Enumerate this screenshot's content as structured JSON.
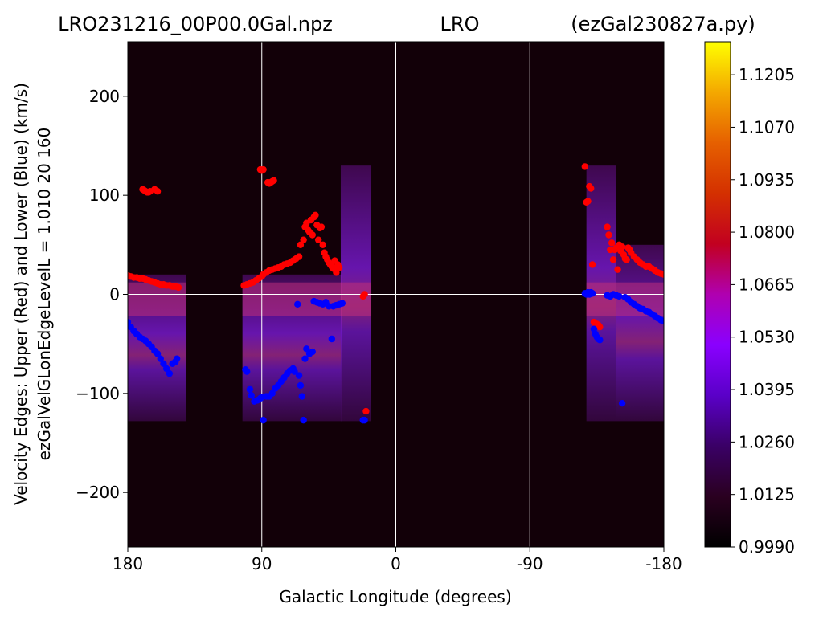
{
  "figure": {
    "title_left": "LRO231216_00P00.0Gal.npz",
    "title_center": "LRO",
    "title_right": "(ezGal230827a.py)"
  },
  "chart_data": {
    "type": "heatmap",
    "xlabel": "Galactic Longitude (degrees)",
    "ylabel_line1": "Velocity Edges: Upper (Red) and Lower (Blue) (km/s)",
    "ylabel_line2": "ezGalVelGLonEdgeLevelL = 1.010  20  160",
    "xlim": [
      180,
      -180
    ],
    "ylim": [
      -255,
      255
    ],
    "x_ticks": [
      180,
      90,
      0,
      -90,
      -180
    ],
    "y_ticks": [
      200,
      100,
      0,
      -100,
      -200
    ],
    "y_tick_labels": [
      "200",
      "100",
      "0",
      "−100",
      "−200"
    ],
    "grid": true,
    "colorbar": {
      "colormap": "gnuplot",
      "range": [
        0.999,
        1.129
      ],
      "ticks": [
        0.999,
        1.0125,
        1.026,
        1.0395,
        1.053,
        1.0665,
        1.08,
        1.0935,
        1.107,
        1.1205
      ],
      "tick_labels": [
        "0.9990",
        "1.0125",
        "1.0260",
        "1.0395",
        "1.0530",
        "1.0665",
        "1.0800",
        "1.0935",
        "1.1070",
        "1.1205"
      ]
    },
    "data_regions": [
      {
        "x_from": 180,
        "x_to": 141,
        "v_from": -128,
        "v_to": 20
      },
      {
        "x_from": 103,
        "x_to": 36,
        "v_from": -128,
        "v_to": 20
      },
      {
        "x_from": 37,
        "x_to": 17,
        "v_from": -128,
        "v_to": 130
      },
      {
        "x_from": -128,
        "x_to": -148,
        "v_from": -128,
        "v_to": 130
      },
      {
        "x_from": -148,
        "x_to": -180,
        "v_from": -128,
        "v_to": 50
      }
    ],
    "series": [
      {
        "name": "Upper (Red)",
        "color": "#ff0000",
        "points": [
          [
            180,
            19
          ],
          [
            178,
            18
          ],
          [
            176,
            17
          ],
          [
            174,
            17
          ],
          [
            172,
            16
          ],
          [
            170,
            16
          ],
          [
            168,
            15
          ],
          [
            166,
            14
          ],
          [
            164,
            13
          ],
          [
            162,
            12
          ],
          [
            160,
            11
          ],
          [
            158,
            10
          ],
          [
            156,
            10
          ],
          [
            154,
            9
          ],
          [
            152,
            9
          ],
          [
            150,
            8
          ],
          [
            148,
            8
          ],
          [
            146,
            7
          ],
          [
            170,
            106
          ],
          [
            169,
            105
          ],
          [
            168,
            104
          ],
          [
            167,
            103
          ],
          [
            166,
            103
          ],
          [
            165,
            104
          ],
          [
            162,
            106
          ],
          [
            160,
            104
          ],
          [
            102,
            9
          ],
          [
            100,
            10
          ],
          [
            98,
            11
          ],
          [
            96,
            12
          ],
          [
            94,
            14
          ],
          [
            92,
            16
          ],
          [
            90,
            18
          ],
          [
            89,
            20
          ],
          [
            87,
            22
          ],
          [
            85,
            24
          ],
          [
            83,
            25
          ],
          [
            81,
            26
          ],
          [
            79,
            27
          ],
          [
            77,
            28
          ],
          [
            75,
            30
          ],
          [
            73,
            31
          ],
          [
            71,
            32
          ],
          [
            69,
            34
          ],
          [
            67,
            36
          ],
          [
            65,
            38
          ],
          [
            91,
            126
          ],
          [
            90,
            125
          ],
          [
            89,
            126
          ],
          [
            86,
            113
          ],
          [
            85,
            112
          ],
          [
            84,
            113
          ],
          [
            83,
            114
          ],
          [
            82,
            115
          ],
          [
            64,
            50
          ],
          [
            62,
            55
          ],
          [
            61,
            68
          ],
          [
            60,
            72
          ],
          [
            59,
            65
          ],
          [
            58,
            63
          ],
          [
            57,
            75
          ],
          [
            56,
            60
          ],
          [
            55,
            78
          ],
          [
            54,
            80
          ],
          [
            53,
            70
          ],
          [
            52,
            55
          ],
          [
            51,
            67
          ],
          [
            50,
            68
          ],
          [
            49,
            50
          ],
          [
            48,
            42
          ],
          [
            47,
            38
          ],
          [
            46,
            35
          ],
          [
            45,
            32
          ],
          [
            44,
            30
          ],
          [
            43,
            28
          ],
          [
            42,
            26
          ],
          [
            41,
            34
          ],
          [
            40,
            22
          ],
          [
            39,
            30
          ],
          [
            38,
            27
          ],
          [
            22,
            -2
          ],
          [
            21,
            0
          ],
          [
            20,
            -118
          ],
          [
            -127,
            129
          ],
          [
            -128,
            93
          ],
          [
            -129,
            94
          ],
          [
            -130,
            109
          ],
          [
            -131,
            107
          ],
          [
            -132,
            30
          ],
          [
            -133,
            -28
          ],
          [
            -134,
            -30
          ],
          [
            -135,
            -30
          ],
          [
            -136,
            -31
          ],
          [
            -137,
            -33
          ],
          [
            -142,
            68
          ],
          [
            -143,
            60
          ],
          [
            -144,
            45
          ],
          [
            -145,
            52
          ],
          [
            -146,
            35
          ],
          [
            -147,
            45
          ],
          [
            -148,
            47
          ],
          [
            -149,
            25
          ],
          [
            -150,
            50
          ],
          [
            -151,
            44
          ],
          [
            -152,
            48
          ],
          [
            -153,
            40
          ],
          [
            -154,
            36
          ],
          [
            -155,
            35
          ],
          [
            -156,
            47
          ],
          [
            -157,
            45
          ],
          [
            -158,
            42
          ],
          [
            -160,
            38
          ],
          [
            -162,
            35
          ],
          [
            -164,
            32
          ],
          [
            -166,
            30
          ],
          [
            -168,
            28
          ],
          [
            -170,
            28
          ],
          [
            -172,
            26
          ],
          [
            -174,
            24
          ],
          [
            -176,
            22
          ],
          [
            -178,
            21
          ],
          [
            -180,
            20
          ]
        ]
      },
      {
        "name": "Lower (Blue)",
        "color": "#0000ff",
        "points": [
          [
            180,
            -28
          ],
          [
            178,
            -33
          ],
          [
            176,
            -37
          ],
          [
            174,
            -40
          ],
          [
            172,
            -43
          ],
          [
            170,
            -45
          ],
          [
            168,
            -47
          ],
          [
            166,
            -50
          ],
          [
            164,
            -53
          ],
          [
            162,
            -57
          ],
          [
            160,
            -60
          ],
          [
            158,
            -65
          ],
          [
            156,
            -70
          ],
          [
            154,
            -75
          ],
          [
            152,
            -80
          ],
          [
            150,
            -70
          ],
          [
            148,
            -68
          ],
          [
            147,
            -65
          ],
          [
            101,
            -76
          ],
          [
            100,
            -78
          ],
          [
            98,
            -96
          ],
          [
            97,
            -102
          ],
          [
            95,
            -108
          ],
          [
            93,
            -107
          ],
          [
            91,
            -105
          ],
          [
            90,
            -104
          ],
          [
            89,
            -127
          ],
          [
            87,
            -103
          ],
          [
            85,
            -103
          ],
          [
            83,
            -100
          ],
          [
            81,
            -95
          ],
          [
            79,
            -92
          ],
          [
            77,
            -88
          ],
          [
            75,
            -84
          ],
          [
            73,
            -80
          ],
          [
            71,
            -77
          ],
          [
            69,
            -75
          ],
          [
            68,
            -78
          ],
          [
            66,
            -10
          ],
          [
            65,
            -82
          ],
          [
            64,
            -92
          ],
          [
            63,
            -103
          ],
          [
            62,
            -127
          ],
          [
            61,
            -65
          ],
          [
            60,
            -55
          ],
          [
            58,
            -60
          ],
          [
            56,
            -58
          ],
          [
            55,
            -7
          ],
          [
            53,
            -8
          ],
          [
            51,
            -9
          ],
          [
            49,
            -10
          ],
          [
            47,
            -8
          ],
          [
            45,
            -12
          ],
          [
            43,
            -45
          ],
          [
            42,
            -12
          ],
          [
            40,
            -11
          ],
          [
            38,
            -10
          ],
          [
            36,
            -9
          ],
          [
            22,
            -127
          ],
          [
            21,
            -127
          ],
          [
            -127,
            1
          ],
          [
            -128,
            0
          ],
          [
            -129,
            2
          ],
          [
            -130,
            0
          ],
          [
            -131,
            2
          ],
          [
            -132,
            1
          ],
          [
            -133,
            -35
          ],
          [
            -134,
            -40
          ],
          [
            -135,
            -43
          ],
          [
            -136,
            -45
          ],
          [
            -137,
            -46
          ],
          [
            -142,
            -1
          ],
          [
            -144,
            -2
          ],
          [
            -146,
            0
          ],
          [
            -148,
            -1
          ],
          [
            -150,
            -2
          ],
          [
            -152,
            -110
          ],
          [
            -154,
            -3
          ],
          [
            -156,
            -5
          ],
          [
            -158,
            -8
          ],
          [
            -160,
            -10
          ],
          [
            -162,
            -12
          ],
          [
            -164,
            -14
          ],
          [
            -166,
            -15
          ],
          [
            -168,
            -17
          ],
          [
            -170,
            -18
          ],
          [
            -172,
            -20
          ],
          [
            -174,
            -22
          ],
          [
            -176,
            -24
          ],
          [
            -178,
            -26
          ],
          [
            -180,
            -27
          ]
        ]
      }
    ]
  }
}
